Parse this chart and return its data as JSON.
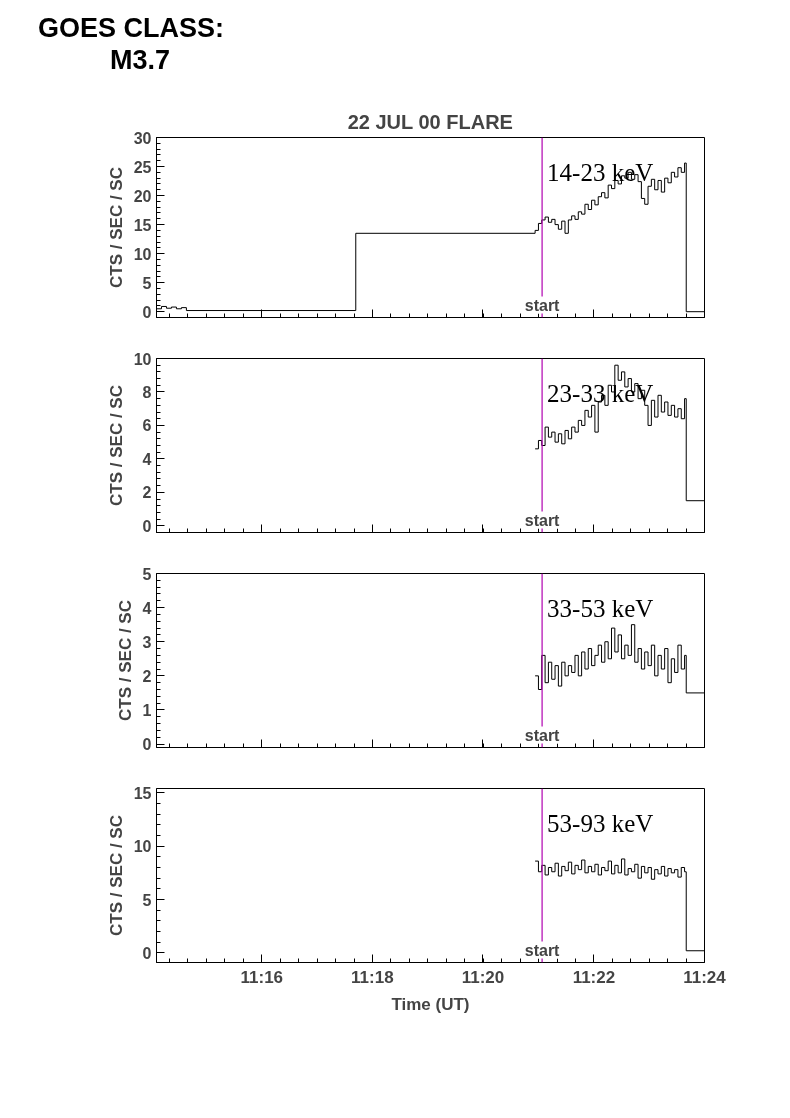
{
  "chart_data": [
    {
      "type": "step",
      "title": "22 JUL 00 FLARE",
      "subtitle": "14-23 keV",
      "ylabel": "CTS / SEC / SC",
      "annotations": [
        "GOES CLASS:",
        "M3.7"
      ],
      "tick_labels": "y",
      "grid": false,
      "xlim": [
        11.235,
        11.4
      ],
      "xticks": [
        {
          "value": 11.2667,
          "label": null
        },
        {
          "value": 11.3,
          "label": null
        },
        {
          "value": 11.3333,
          "label": null
        },
        {
          "value": 11.3667,
          "label": null
        },
        {
          "value": 11.4,
          "label": null
        }
      ],
      "ylim": [
        -1,
        30
      ],
      "yticks": [
        0,
        5,
        10,
        15,
        20,
        25,
        30
      ],
      "ref_lines": [
        {
          "axis": "x",
          "value": 11.3511,
          "label": "start",
          "color": "#b000b0"
        }
      ],
      "series": [
        {
          "color": "#000000",
          "x": [
            11.235,
            11.2365,
            11.238,
            11.2395,
            11.241,
            11.2425,
            11.244,
            11.295,
            11.349,
            11.35,
            11.351,
            11.352,
            11.353,
            11.354,
            11.355,
            11.356,
            11.357,
            11.358,
            11.359,
            11.36,
            11.361,
            11.362,
            11.363,
            11.364,
            11.365,
            11.366,
            11.367,
            11.368,
            11.369,
            11.37,
            11.371,
            11.372,
            11.373,
            11.374,
            11.375,
            11.376,
            11.377,
            11.378,
            11.379,
            11.38,
            11.381,
            11.382,
            11.383,
            11.384,
            11.385,
            11.386,
            11.387,
            11.388,
            11.389,
            11.39,
            11.391,
            11.392,
            11.393,
            11.394,
            11.3945,
            11.4
          ],
          "values": [
            0.5,
            0.9,
            0.6,
            0.8,
            0.5,
            0.7,
            0.2,
            13.5,
            14.0,
            15.2,
            15.8,
            16.3,
            15.4,
            15.9,
            15.0,
            14.2,
            15.6,
            13.5,
            15.8,
            16.5,
            15.9,
            17.2,
            16.8,
            18.5,
            17.6,
            19.2,
            18.4,
            19.8,
            20.5,
            19.6,
            21.8,
            21.2,
            22.6,
            22.0,
            23.4,
            23.0,
            24.0,
            22.8,
            23.6,
            22.4,
            19.5,
            18.5,
            21.6,
            22.8,
            21.0,
            22.6,
            20.6,
            23.0,
            22.2,
            24.0,
            23.2,
            24.8,
            24.0,
            25.6,
            0,
            0
          ]
        }
      ]
    },
    {
      "type": "step",
      "subtitle": "23-33 keV",
      "ylabel": "CTS / SEC / SC",
      "tick_labels": "y",
      "grid": false,
      "xlim": [
        11.235,
        11.4
      ],
      "xticks": [
        {
          "value": 11.2667,
          "label": null
        },
        {
          "value": 11.3,
          "label": null
        },
        {
          "value": 11.3333,
          "label": null
        },
        {
          "value": 11.3667,
          "label": null
        },
        {
          "value": 11.4,
          "label": null
        }
      ],
      "ylim": [
        -0.4,
        10
      ],
      "yticks": [
        0,
        2,
        4,
        6,
        8,
        10
      ],
      "ref_lines": [
        {
          "axis": "x",
          "value": 11.3511,
          "label": "start",
          "color": "#b000b0"
        }
      ],
      "series": [
        {
          "color": "#000000",
          "x": [
            11.349,
            11.35,
            11.351,
            11.352,
            11.353,
            11.354,
            11.355,
            11.356,
            11.357,
            11.358,
            11.359,
            11.36,
            11.361,
            11.362,
            11.363,
            11.364,
            11.365,
            11.366,
            11.367,
            11.368,
            11.369,
            11.37,
            11.371,
            11.372,
            11.373,
            11.374,
            11.375,
            11.376,
            11.377,
            11.378,
            11.379,
            11.38,
            11.381,
            11.382,
            11.383,
            11.384,
            11.385,
            11.386,
            11.387,
            11.388,
            11.389,
            11.39,
            11.391,
            11.392,
            11.393,
            11.394,
            11.3945,
            11.4
          ],
          "values": [
            4.6,
            5.1,
            4.8,
            5.9,
            5.3,
            5.6,
            5.0,
            5.5,
            4.9,
            5.7,
            5.2,
            5.9,
            5.6,
            6.3,
            6.0,
            6.9,
            6.5,
            7.2,
            5.6,
            7.4,
            7.8,
            7.2,
            8.4,
            8.0,
            9.6,
            8.7,
            9.2,
            8.3,
            8.8,
            8.0,
            8.5,
            7.6,
            8.1,
            7.2,
            6.0,
            7.5,
            6.5,
            7.8,
            6.8,
            7.4,
            6.6,
            7.2,
            6.5,
            7.0,
            6.4,
            7.6,
            1.5,
            1.5
          ]
        }
      ]
    },
    {
      "type": "step",
      "subtitle": "33-53 keV",
      "ylabel": "CTS / SEC / SC",
      "tick_labels": "y",
      "grid": false,
      "xlim": [
        11.235,
        11.4
      ],
      "xticks": [
        {
          "value": 11.2667,
          "label": null
        },
        {
          "value": 11.3,
          "label": null
        },
        {
          "value": 11.3333,
          "label": null
        },
        {
          "value": 11.3667,
          "label": null
        },
        {
          "value": 11.4,
          "label": null
        }
      ],
      "ylim": [
        -0.1,
        5
      ],
      "yticks": [
        0,
        1,
        2,
        3,
        4,
        5
      ],
      "ref_lines": [
        {
          "axis": "x",
          "value": 11.3511,
          "label": "start",
          "color": "#b000b0"
        }
      ],
      "series": [
        {
          "color": "#000000",
          "x": [
            11.349,
            11.35,
            11.351,
            11.352,
            11.353,
            11.354,
            11.355,
            11.356,
            11.357,
            11.358,
            11.359,
            11.36,
            11.361,
            11.362,
            11.363,
            11.364,
            11.365,
            11.366,
            11.367,
            11.368,
            11.369,
            11.37,
            11.371,
            11.372,
            11.373,
            11.374,
            11.375,
            11.376,
            11.377,
            11.378,
            11.379,
            11.38,
            11.381,
            11.382,
            11.383,
            11.384,
            11.385,
            11.386,
            11.387,
            11.388,
            11.389,
            11.39,
            11.391,
            11.392,
            11.393,
            11.394,
            11.3945,
            11.4
          ],
          "values": [
            2.0,
            1.6,
            2.6,
            1.8,
            2.4,
            1.9,
            2.3,
            1.7,
            2.4,
            2.0,
            2.3,
            2.1,
            2.6,
            2.0,
            2.7,
            2.2,
            2.8,
            2.3,
            2.6,
            2.9,
            2.4,
            3.0,
            2.5,
            3.4,
            2.7,
            3.2,
            2.5,
            2.9,
            2.6,
            3.5,
            2.4,
            2.8,
            2.2,
            2.7,
            2.3,
            2.9,
            2.0,
            2.6,
            2.2,
            2.8,
            1.8,
            2.5,
            2.1,
            2.9,
            2.2,
            2.6,
            1.5,
            1.5
          ]
        }
      ]
    },
    {
      "type": "step",
      "subtitle": "53-93 keV",
      "xlabel": "Time (UT)",
      "ylabel": "CTS / SEC / SC",
      "grid": false,
      "xlim": [
        11.235,
        11.4
      ],
      "xticks": [
        {
          "value": 11.2667,
          "label": "11:16"
        },
        {
          "value": 11.3,
          "label": "11:18"
        },
        {
          "value": 11.3333,
          "label": "11:20"
        },
        {
          "value": 11.3667,
          "label": "11:22"
        },
        {
          "value": 11.4,
          "label": "11:24"
        }
      ],
      "ylim": [
        -0.9,
        15.4
      ],
      "yticks": [
        0,
        5,
        10,
        15
      ],
      "ref_lines": [
        {
          "axis": "x",
          "value": 11.3511,
          "label": "start",
          "color": "#b000b0"
        }
      ],
      "series": [
        {
          "color": "#000000",
          "x": [
            11.349,
            11.35,
            11.351,
            11.352,
            11.353,
            11.354,
            11.355,
            11.356,
            11.357,
            11.358,
            11.359,
            11.36,
            11.361,
            11.362,
            11.363,
            11.364,
            11.365,
            11.366,
            11.367,
            11.368,
            11.369,
            11.37,
            11.371,
            11.372,
            11.373,
            11.374,
            11.375,
            11.376,
            11.377,
            11.378,
            11.379,
            11.38,
            11.381,
            11.382,
            11.383,
            11.384,
            11.385,
            11.386,
            11.387,
            11.388,
            11.389,
            11.39,
            11.391,
            11.392,
            11.393,
            11.394,
            11.3945,
            11.4
          ],
          "values": [
            8.6,
            7.6,
            8.2,
            7.3,
            8.0,
            7.6,
            8.4,
            7.2,
            8.1,
            7.7,
            8.5,
            7.4,
            8.2,
            7.8,
            8.7,
            7.5,
            8.1,
            7.6,
            8.3,
            7.3,
            8.0,
            7.7,
            8.6,
            7.4,
            8.2,
            7.5,
            8.8,
            7.3,
            7.9,
            7.6,
            8.3,
            7.0,
            8.1,
            7.5,
            8.0,
            6.9,
            7.8,
            7.4,
            8.1,
            7.2,
            7.9,
            7.5,
            7.8,
            7.1,
            8.0,
            7.6,
            0.2,
            0.2
          ]
        }
      ]
    }
  ]
}
